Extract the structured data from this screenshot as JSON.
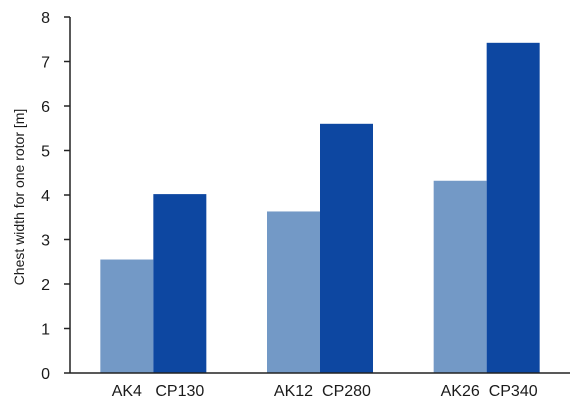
{
  "chart_data": {
    "type": "bar",
    "title": "",
    "xlabel": "",
    "ylabel": "Chest width for one rotor [m]",
    "ylim": [
      0,
      8
    ],
    "yticks": [
      0,
      1,
      2,
      3,
      4,
      5,
      6,
      7,
      8
    ],
    "grid": false,
    "legend": "none",
    "groups": [
      {
        "labels": [
          "AK4",
          "CP130"
        ],
        "values": [
          2.55,
          4.02
        ]
      },
      {
        "labels": [
          "AK12",
          "CP280"
        ],
        "values": [
          3.63,
          5.6
        ]
      },
      {
        "labels": [
          "AK26",
          "CP340"
        ],
        "values": [
          4.32,
          7.42
        ]
      }
    ],
    "series_colors": [
      "#7399c6",
      "#0d47a1"
    ]
  }
}
